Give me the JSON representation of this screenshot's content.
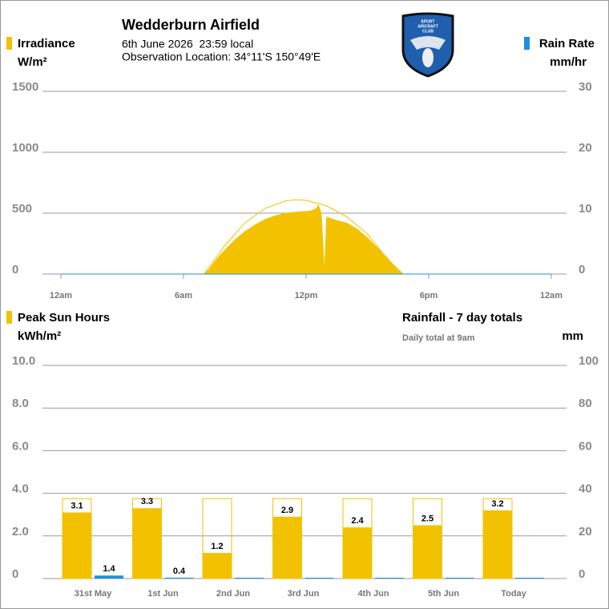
{
  "header": {
    "title": "Wedderburn Airfield",
    "datetime": "6th June 2026  23:59 local",
    "location": "Observation Location: 34°11'S 150°49'E",
    "logo_text": [
      "SPORT",
      "AIRCRAFT",
      "CLUB"
    ]
  },
  "chart_data": [
    {
      "type": "area",
      "y_label": "W/m²",
      "y2_label": "mm/hr",
      "xlim": [
        0,
        24
      ],
      "xticks": [
        {
          "value": 0,
          "label": "12am"
        },
        {
          "value": 6,
          "label": "6am"
        },
        {
          "value": 12,
          "label": "12pm"
        },
        {
          "value": 18,
          "label": "6pm"
        },
        {
          "value": 24,
          "label": "12am"
        }
      ],
      "ylim": [
        0,
        1500
      ],
      "yticks": [
        0,
        500,
        1000,
        1500
      ],
      "y2lim": [
        0,
        30
      ],
      "y2ticks": [
        0,
        10,
        20,
        30
      ],
      "grid": true,
      "series": [
        {
          "name": "Irradiance",
          "color": "#f2c200",
          "x": [
            7.0,
            7.25,
            7.5,
            7.75,
            8.0,
            8.5,
            9.0,
            9.5,
            10.0,
            10.5,
            11.0,
            11.5,
            12.0,
            12.25,
            12.5,
            12.6,
            12.75,
            12.9,
            13.0,
            13.5,
            14.0,
            14.5,
            15.0,
            15.5,
            16.0,
            16.5,
            16.75
          ],
          "values": [
            0,
            40,
            100,
            150,
            195,
            280,
            350,
            405,
            450,
            480,
            500,
            510,
            515,
            520,
            540,
            570,
            500,
            40,
            470,
            440,
            420,
            370,
            300,
            215,
            130,
            30,
            0
          ]
        },
        {
          "color": "#f2c200",
          "x": [
            7.0,
            8.0,
            9.0,
            10.0,
            11.0,
            11.5,
            12.0,
            13.0,
            14.0,
            15.0,
            16.0,
            16.75
          ],
          "values": [
            0,
            230,
            420,
            540,
            600,
            610,
            605,
            560,
            470,
            330,
            120,
            0
          ]
        },
        {
          "name": "Rain Rate",
          "color": "#1a8fe0",
          "axis": "y2",
          "x": [
            0,
            24
          ],
          "values": [
            0,
            0
          ]
        }
      ]
    },
    {
      "type": "bar",
      "subtitle": "Daily total at 9am",
      "y_label": "kWh/m²",
      "y2_label": "mm",
      "categories": [
        "31st May",
        "1st Jun",
        "2nd Jun",
        "3rd Jun",
        "4th Jun",
        "5th Jun",
        "Today"
      ],
      "ylim": [
        0,
        10
      ],
      "yticks": [
        0,
        {
          "value": 2,
          "label": "2.0"
        },
        {
          "value": 4,
          "label": "4.0"
        },
        {
          "value": 6,
          "label": "6.0"
        },
        {
          "value": 8,
          "label": "8.0"
        },
        {
          "value": 10,
          "label": "10.0"
        }
      ],
      "y2lim": [
        0,
        100
      ],
      "y2ticks": [
        0,
        20,
        40,
        60,
        80,
        100
      ],
      "grid": true,
      "max_values": [
        3.75,
        3.75,
        3.75,
        3.75,
        3.75,
        3.75,
        3.75
      ],
      "series": [
        {
          "name": "Peak Sun Hours",
          "color": "#f2c200",
          "values": [
            3.1,
            3.3,
            1.2,
            2.9,
            2.4,
            2.5,
            3.2
          ]
        },
        {
          "name": "Rainfall - 7 day totals",
          "color": "#1a8fe0",
          "axis": "y2",
          "values": [
            1.4,
            0.4,
            0,
            0,
            0,
            0,
            0
          ]
        }
      ]
    }
  ]
}
